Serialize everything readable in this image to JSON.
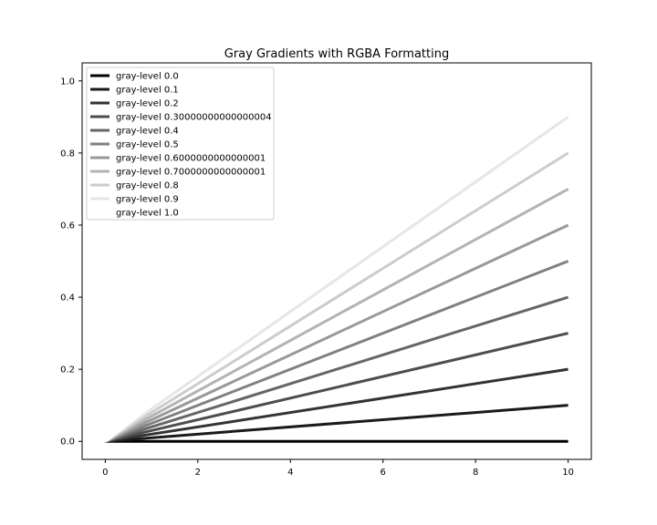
{
  "chart_data": {
    "type": "line",
    "title": "Gray Gradients with RGBA Formatting",
    "xlabel": "",
    "ylabel": "",
    "xlim": [
      -0.5,
      10.5
    ],
    "ylim": [
      -0.05,
      1.05
    ],
    "xticks": [
      0,
      2,
      4,
      6,
      8,
      10
    ],
    "xtick_labels": [
      "0",
      "2",
      "4",
      "6",
      "8",
      "10"
    ],
    "yticks": [
      0.0,
      0.2,
      0.4,
      0.6,
      0.8,
      1.0
    ],
    "ytick_labels": [
      "0.0",
      "0.2",
      "0.4",
      "0.6",
      "0.8",
      "1.0"
    ],
    "grid": false,
    "legend_position": "upper-left",
    "x": [
      0,
      10
    ],
    "series": [
      {
        "name": "gray-level 0.0",
        "values": [
          0,
          0.0
        ],
        "color": "#000000"
      },
      {
        "name": "gray-level 0.1",
        "values": [
          0,
          0.1
        ],
        "color": "#1a1a1a"
      },
      {
        "name": "gray-level 0.2",
        "values": [
          0,
          0.2
        ],
        "color": "#333333"
      },
      {
        "name": "gray-level 0.30000000000000004",
        "values": [
          0,
          0.3
        ],
        "color": "#4d4d4d"
      },
      {
        "name": "gray-level 0.4",
        "values": [
          0,
          0.4
        ],
        "color": "#666666"
      },
      {
        "name": "gray-level 0.5",
        "values": [
          0,
          0.5
        ],
        "color": "#808080"
      },
      {
        "name": "gray-level 0.6000000000000001",
        "values": [
          0,
          0.6
        ],
        "color": "#999999"
      },
      {
        "name": "gray-level 0.7000000000000001",
        "values": [
          0,
          0.7
        ],
        "color": "#b3b3b3"
      },
      {
        "name": "gray-level 0.8",
        "values": [
          0,
          0.8
        ],
        "color": "#cccccc"
      },
      {
        "name": "gray-level 0.9",
        "values": [
          0,
          0.9
        ],
        "color": "#e6e6e6"
      },
      {
        "name": "gray-level 1.0",
        "values": [
          0,
          1.0
        ],
        "color": "#ffffff"
      }
    ]
  }
}
